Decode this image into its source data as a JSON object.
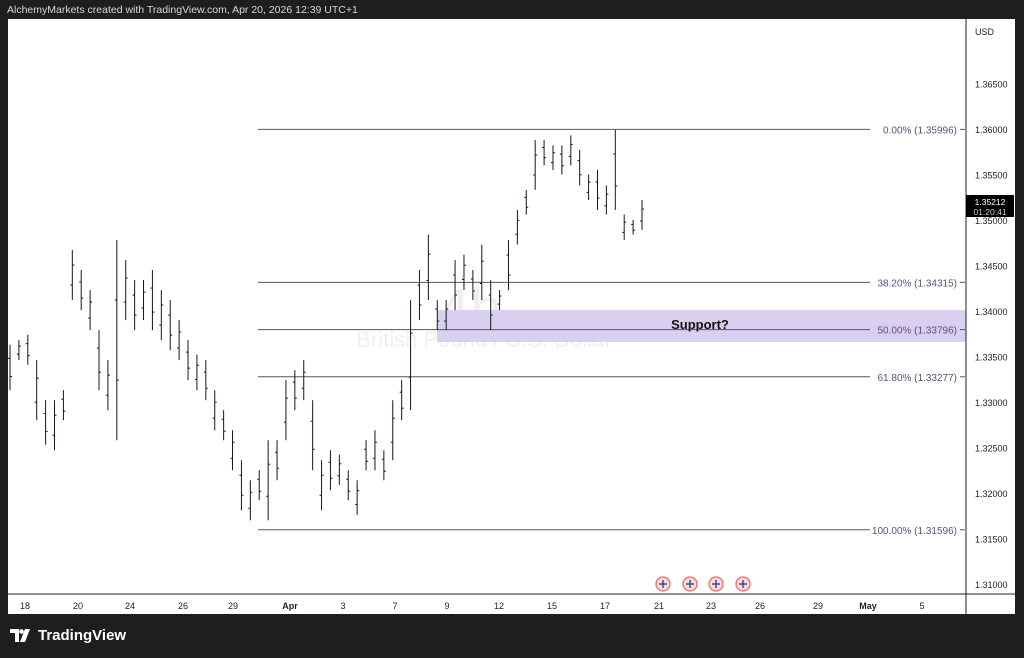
{
  "credit": "AlchemyMarkets created with TradingView.com, Apr 20, 2026 12:39 UTC+1",
  "brand": "TradingView",
  "watermark": {
    "interval": "4h",
    "symbol_name": "British Pound / U.S. Dollar"
  },
  "currency": "USD",
  "last_price": {
    "price": "1.35212",
    "countdown": "01:20:41"
  },
  "annotation": "Support?",
  "colors": {
    "support_zone": "#d9cff0",
    "fib_line": "#55556e",
    "bars": "#131722",
    "frame": "#1e1e1e"
  },
  "icons": [
    "uk-flag-event-icon",
    "uk-flag-event-icon",
    "uk-flag-event-icon",
    "uk-flag-event-icon"
  ],
  "chart_data": {
    "type": "ohlc-bar",
    "title": "British Pound / U.S. Dollar",
    "interval": "4h",
    "ylim": [
      1.3075,
      1.37
    ],
    "y_ticks": [
      "1.36500",
      "1.36000",
      "1.35500",
      "1.35000",
      "1.34500",
      "1.34000",
      "1.33500",
      "1.33000",
      "1.32500",
      "1.32000",
      "1.31500",
      "1.31000"
    ],
    "y_tick_values": [
      1.365,
      1.36,
      1.355,
      1.35,
      1.345,
      1.34,
      1.335,
      1.33,
      1.325,
      1.32,
      1.315,
      1.31
    ],
    "x_ticks": [
      {
        "label": "18",
        "bold": false
      },
      {
        "label": "20",
        "bold": false
      },
      {
        "label": "24",
        "bold": false
      },
      {
        "label": "26",
        "bold": false
      },
      {
        "label": "29",
        "bold": false
      },
      {
        "label": "Apr",
        "bold": true
      },
      {
        "label": "3",
        "bold": false
      },
      {
        "label": "7",
        "bold": false
      },
      {
        "label": "9",
        "bold": false
      },
      {
        "label": "12",
        "bold": false
      },
      {
        "label": "15",
        "bold": false
      },
      {
        "label": "17",
        "bold": false
      },
      {
        "label": "21",
        "bold": false
      },
      {
        "label": "23",
        "bold": false
      },
      {
        "label": "26",
        "bold": false
      },
      {
        "label": "29",
        "bold": false
      },
      {
        "label": "May",
        "bold": true
      },
      {
        "label": "5",
        "bold": false
      }
    ],
    "bars_high_low": [
      [
        1.3363,
        1.3313
      ],
      [
        1.3368,
        1.3346
      ],
      [
        1.3374,
        1.3341
      ],
      [
        1.3346,
        1.328
      ],
      [
        1.3302,
        1.3253
      ],
      [
        1.3302,
        1.3247
      ],
      [
        1.3313,
        1.328
      ],
      [
        1.3467,
        1.3412
      ],
      [
        1.3445,
        1.3401
      ],
      [
        1.3423,
        1.3379
      ],
      [
        1.3379,
        1.3313
      ],
      [
        1.3346,
        1.3291
      ],
      [
        1.3478,
        1.3258
      ],
      [
        1.3456,
        1.339
      ],
      [
        1.3434,
        1.3379
      ],
      [
        1.3434,
        1.339
      ],
      [
        1.3445,
        1.3379
      ],
      [
        1.3423,
        1.3368
      ],
      [
        1.3412,
        1.3357
      ],
      [
        1.339,
        1.3346
      ],
      [
        1.3368,
        1.3324
      ],
      [
        1.3352,
        1.3313
      ],
      [
        1.3346,
        1.3302
      ],
      [
        1.3313,
        1.3269
      ],
      [
        1.3291,
        1.3258
      ],
      [
        1.3269,
        1.3225
      ],
      [
        1.3236,
        1.3181
      ],
      [
        1.3214,
        1.317
      ],
      [
        1.3225,
        1.3192
      ],
      [
        1.3258,
        1.317
      ],
      [
        1.3258,
        1.3214
      ],
      [
        1.3324,
        1.3258
      ],
      [
        1.3335,
        1.3291
      ],
      [
        1.3346,
        1.3302
      ],
      [
        1.3302,
        1.3225
      ],
      [
        1.3236,
        1.3181
      ],
      [
        1.3247,
        1.3203
      ],
      [
        1.3242,
        1.3209
      ],
      [
        1.3225,
        1.3192
      ],
      [
        1.3214,
        1.3176
      ],
      [
        1.3258,
        1.3225
      ],
      [
        1.3269,
        1.3225
      ],
      [
        1.3247,
        1.3214
      ],
      [
        1.3302,
        1.3236
      ],
      [
        1.3324,
        1.328
      ],
      [
        1.3412,
        1.3291
      ],
      [
        1.3445,
        1.339
      ],
      [
        1.3484,
        1.3412
      ],
      [
        1.3412,
        1.3379
      ],
      [
        1.3412,
        1.3379
      ],
      [
        1.3456,
        1.3401
      ],
      [
        1.3462,
        1.3423
      ],
      [
        1.3445,
        1.3412
      ],
      [
        1.3473,
        1.3412
      ],
      [
        1.3434,
        1.3379
      ],
      [
        1.3423,
        1.3401
      ],
      [
        1.3478,
        1.3423
      ],
      [
        1.3511,
        1.3473
      ],
      [
        1.3533,
        1.3506
      ],
      [
        1.3588,
        1.3533
      ],
      [
        1.3588,
        1.356
      ],
      [
        1.3582,
        1.3555
      ],
      [
        1.3582,
        1.355
      ],
      [
        1.3593,
        1.356
      ],
      [
        1.3577,
        1.3538
      ],
      [
        1.355,
        1.3522
      ],
      [
        1.3555,
        1.3511
      ],
      [
        1.3538,
        1.3506
      ],
      [
        1.3599,
        1.3511
      ],
      [
        1.3506,
        1.3478
      ],
      [
        1.35,
        1.3484
      ],
      [
        1.3522,
        1.3489
      ]
    ],
    "fibonacci": [
      {
        "label": "0.00% (1.35996)",
        "value": 1.35996
      },
      {
        "label": "38.20% (1.34315)",
        "value": 1.34315
      },
      {
        "label": "50.00% (1.33796)",
        "value": 1.33796
      },
      {
        "label": "61.80% (1.33277)",
        "value": 1.33277
      },
      {
        "label": "100.00% (1.31596)",
        "value": 1.31596
      }
    ],
    "support_zone": [
      1.3366,
      1.3401
    ],
    "grid": false
  }
}
